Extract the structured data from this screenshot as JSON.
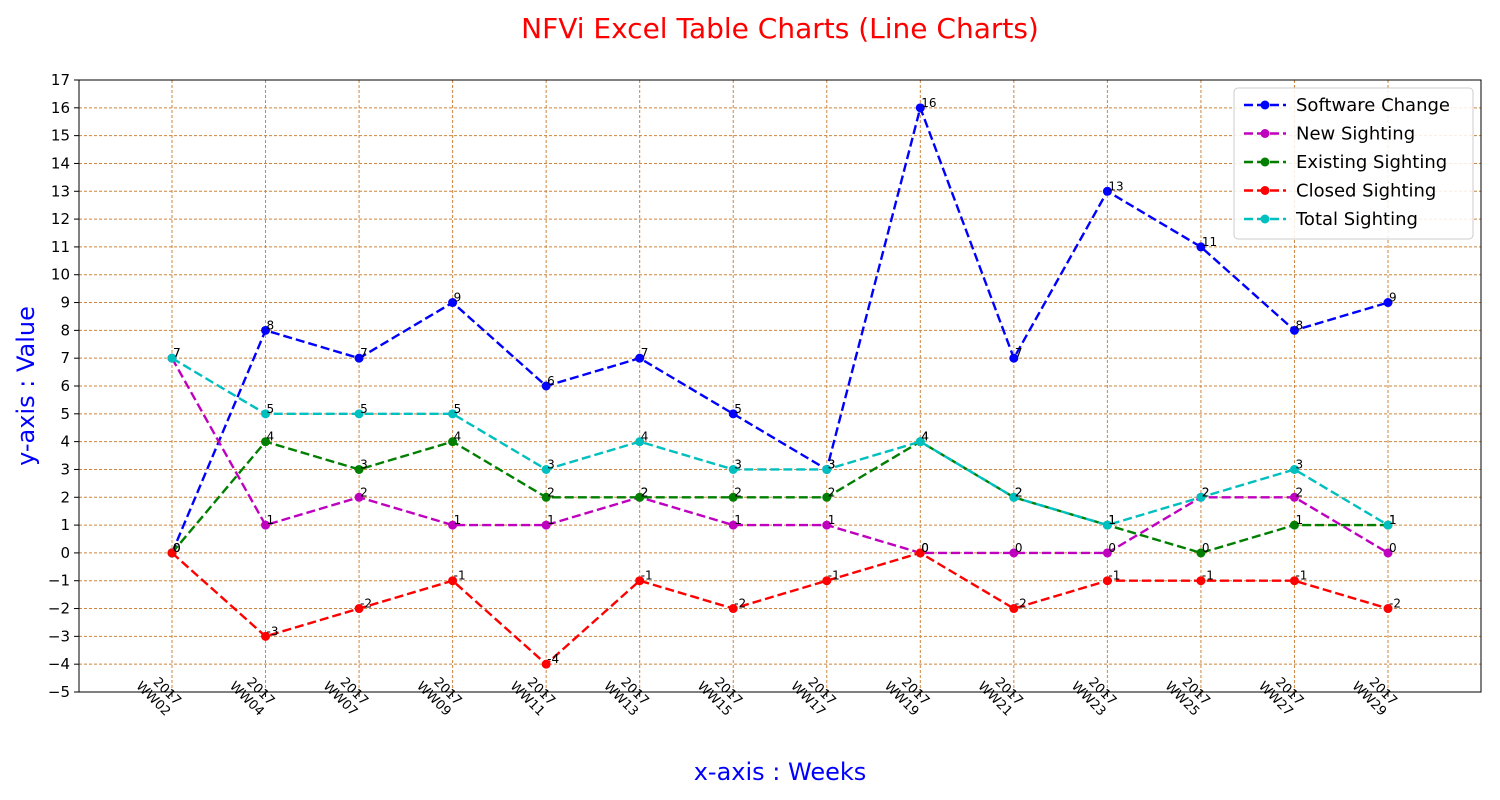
{
  "chart_data": {
    "type": "line",
    "title": "NFVi Excel Table Charts (Line Charts)",
    "xlabel": "x-axis : Weeks",
    "ylabel": "y-axis : Value",
    "ylim": [
      -5,
      17
    ],
    "grid": true,
    "legend_position": "top-right",
    "categories": [
      [
        "2017",
        "WW02"
      ],
      [
        "2017",
        "WW04"
      ],
      [
        "2017",
        "WW07"
      ],
      [
        "2017",
        "WW09"
      ],
      [
        "2017",
        "WW11"
      ],
      [
        "2017",
        "WW13"
      ],
      [
        "2017",
        "WW15"
      ],
      [
        "2017",
        "WW17"
      ],
      [
        "2017",
        "WW19"
      ],
      [
        "2017",
        "WW21"
      ],
      [
        "2017",
        "WW23"
      ],
      [
        "2017",
        "WW25"
      ],
      [
        "2017",
        "WW27"
      ],
      [
        "2017",
        "WW29"
      ]
    ],
    "series": [
      {
        "name": "Software Change",
        "color": "#0000ff",
        "values": [
          0,
          8,
          7,
          9,
          6,
          7,
          5,
          3,
          16,
          7,
          13,
          11,
          8,
          9
        ]
      },
      {
        "name": "New Sighting",
        "color": "#bf00bf",
        "values": [
          7,
          1,
          2,
          1,
          1,
          2,
          1,
          1,
          0,
          0,
          0,
          2,
          2,
          0
        ]
      },
      {
        "name": "Existing Sighting",
        "color": "#007f00",
        "values": [
          0,
          4,
          3,
          4,
          2,
          2,
          2,
          2,
          4,
          2,
          1,
          0,
          1,
          1
        ]
      },
      {
        "name": "Closed Sighting",
        "color": "#ff0000",
        "values": [
          0,
          -3,
          -2,
          -1,
          -4,
          -1,
          -2,
          -1,
          0,
          -2,
          -1,
          -1,
          -1,
          -2
        ]
      },
      {
        "name": "Total Sighting",
        "color": "#00bfbf",
        "values": [
          7,
          5,
          5,
          5,
          3,
          4,
          3,
          3,
          4,
          2,
          1,
          2,
          3,
          1
        ]
      }
    ],
    "colors": {
      "title": "#ff0000",
      "axis_labels": "#0000ff",
      "grid": "#cd853f"
    }
  }
}
